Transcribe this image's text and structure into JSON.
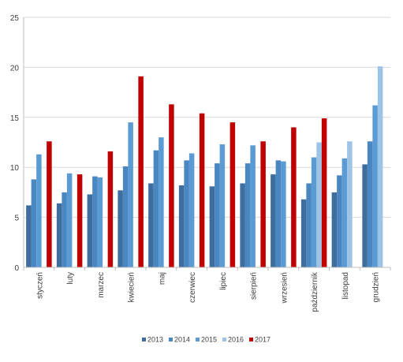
{
  "chart_data": {
    "type": "bar",
    "title": "",
    "xlabel": "",
    "ylabel": "",
    "ylim": [
      0,
      25
    ],
    "yticks": [
      0,
      5,
      10,
      15,
      20,
      25
    ],
    "grid": true,
    "legend": "bottom",
    "categories": [
      "styczeń",
      "luty",
      "marzec",
      "kwiecień",
      "maj",
      "czerwiec",
      "lipiec",
      "sierpień",
      "wrzesień",
      "październik",
      "listopad",
      "grudzień"
    ],
    "series": [
      {
        "name": "2013",
        "color": "#3E6E9E",
        "values": [
          6.2,
          6.4,
          7.3,
          7.7,
          8.4,
          8.2,
          8.1,
          8.4,
          9.3,
          6.8,
          7.5,
          10.3
        ]
      },
      {
        "name": "2014",
        "color": "#4A86C0",
        "values": [
          8.8,
          7.5,
          9.1,
          10.1,
          11.7,
          10.7,
          10.4,
          10.4,
          10.7,
          8.4,
          9.2,
          12.6
        ]
      },
      {
        "name": "2015",
        "color": "#5A9BD3",
        "values": [
          11.3,
          9.4,
          9.0,
          14.5,
          13.0,
          11.4,
          12.3,
          12.2,
          10.6,
          11.0,
          10.9,
          16.2
        ]
      },
      {
        "name": "2016",
        "color": "#9DC3E6",
        "values": [
          null,
          null,
          null,
          null,
          null,
          null,
          null,
          null,
          null,
          12.5,
          12.6,
          20.1
        ]
      },
      {
        "name": "2017",
        "color": "#C00000",
        "values": [
          12.6,
          9.3,
          11.6,
          19.1,
          16.3,
          15.4,
          14.5,
          12.6,
          14.0,
          14.9,
          null,
          null
        ]
      }
    ]
  }
}
